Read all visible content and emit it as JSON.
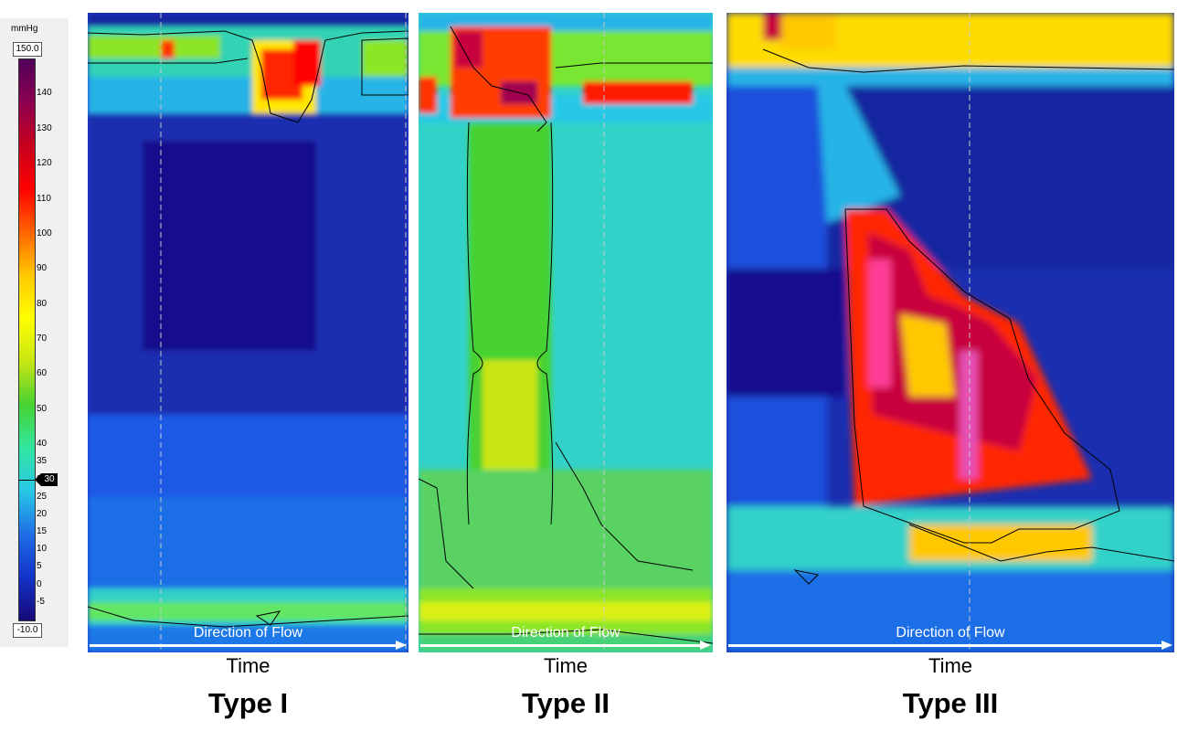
{
  "chart_data": [
    {
      "type": "heatmap",
      "title": "Type I",
      "xlabel": "Time",
      "annotation": "Direction of Flow",
      "colorbar": {
        "unit": "mmHg",
        "max": "150.0",
        "min": "-10.0",
        "ticks": [
          140,
          130,
          120,
          110,
          100,
          90,
          80,
          70,
          60,
          50,
          40,
          35,
          30,
          25,
          20,
          15,
          10,
          5,
          0,
          -5
        ],
        "marker": "30"
      }
    },
    {
      "type": "heatmap",
      "title": "Type II",
      "xlabel": "Time",
      "annotation": "Direction of Flow"
    },
    {
      "type": "heatmap",
      "title": "Type III",
      "xlabel": "Time",
      "annotation": "Direction of Flow"
    }
  ],
  "colors": {
    "scale": [
      "#170a78",
      "#1232c8",
      "#1e6ee6",
      "#28c8e6",
      "#32e6a0",
      "#46d232",
      "#c8e614",
      "#ffff00",
      "#ffc800",
      "#ff6400",
      "#ff0000",
      "#c8001e",
      "#8c0050",
      "#50005a"
    ]
  }
}
